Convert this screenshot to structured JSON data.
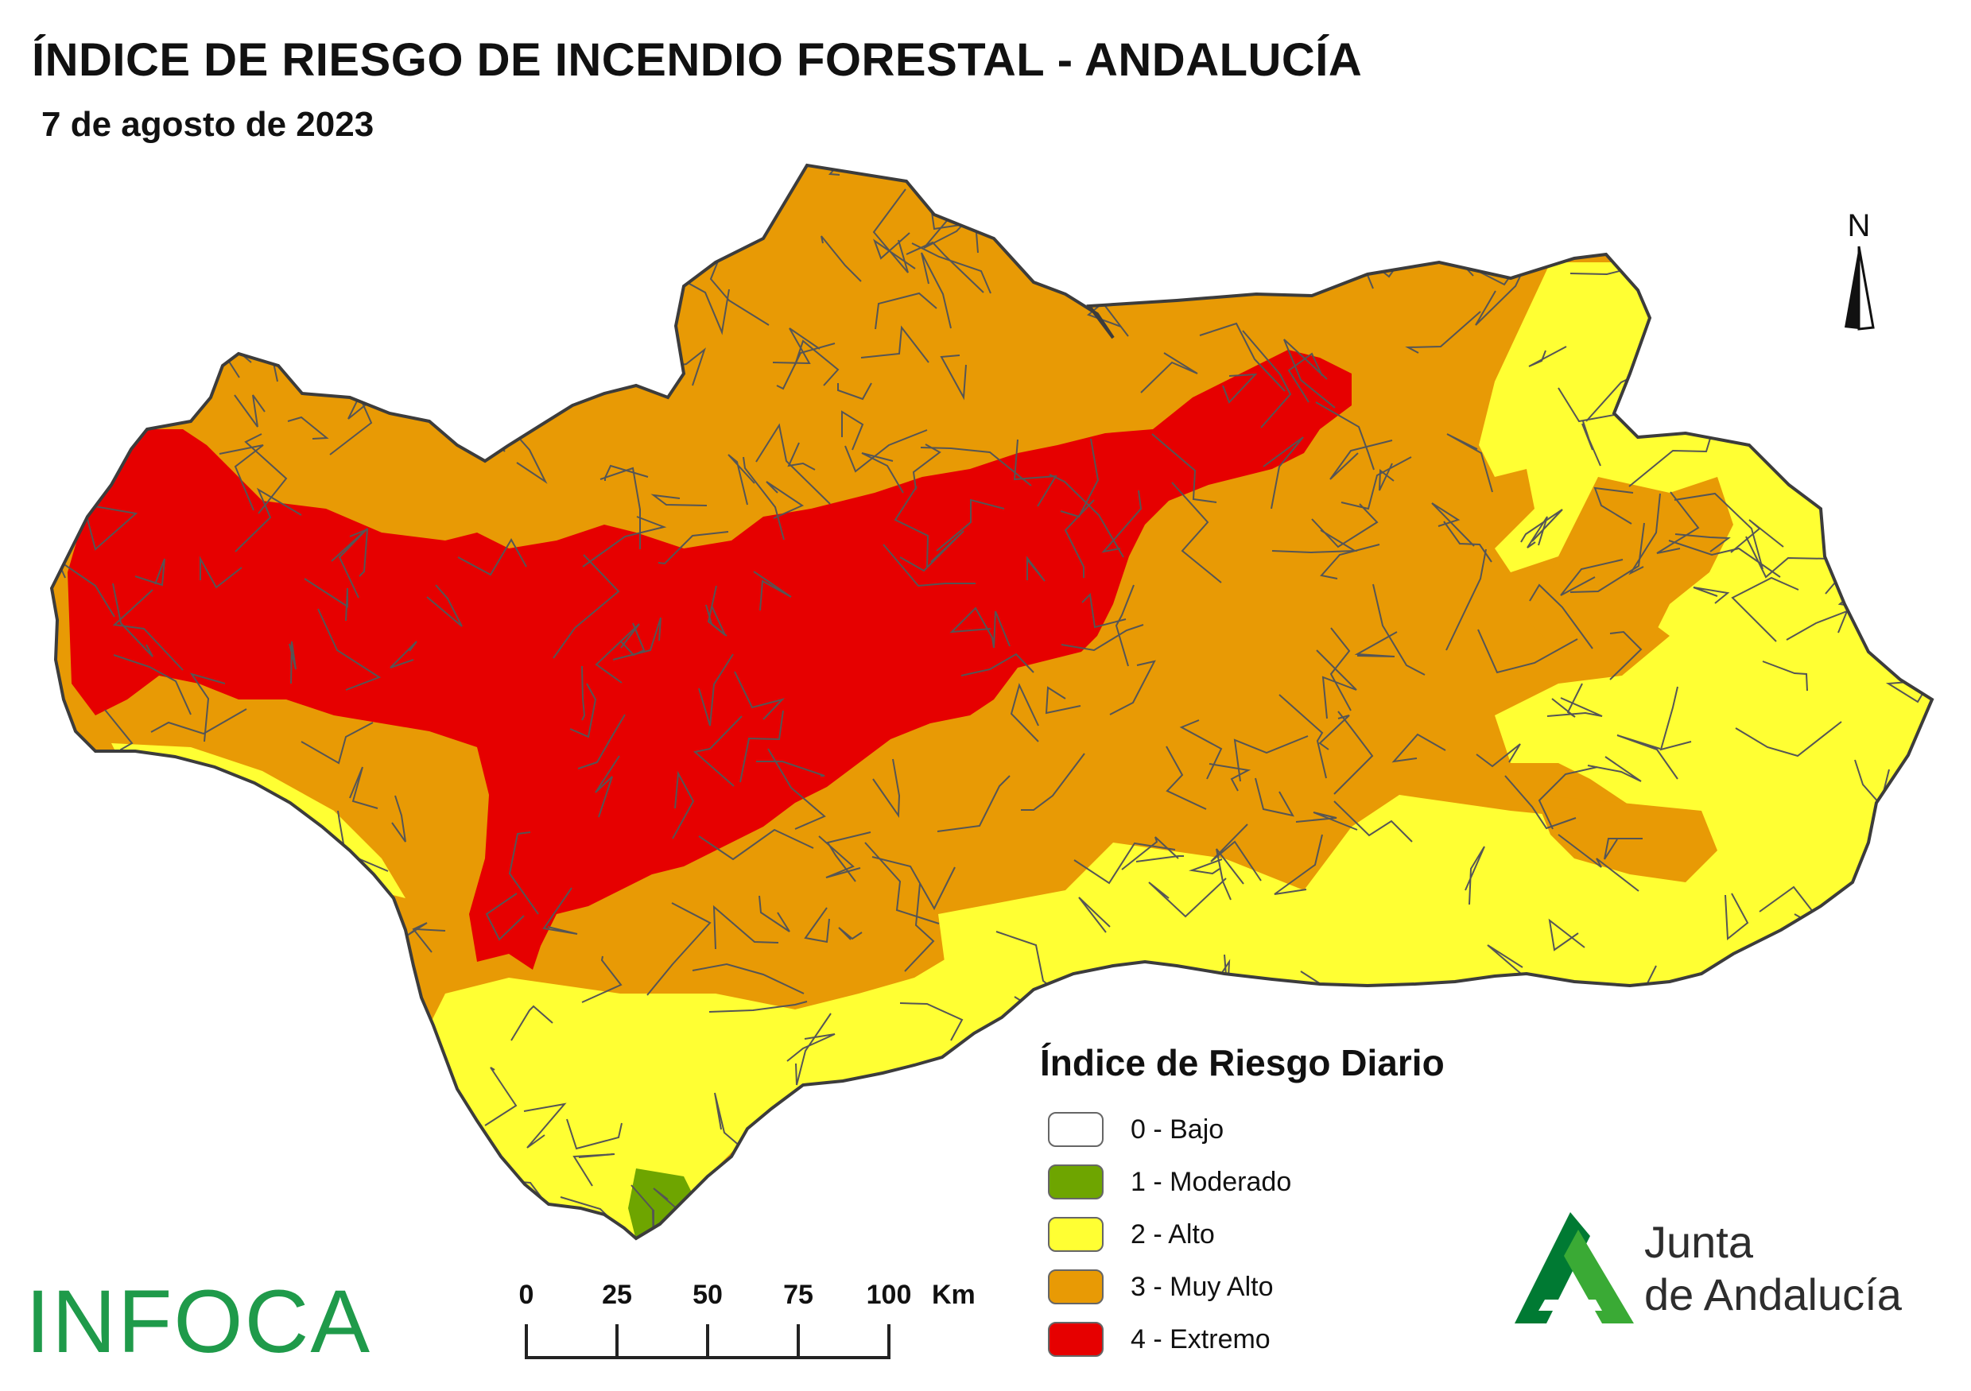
{
  "header": {
    "title": "ÍNDICE DE RIESGO DE INCENDIO FORESTAL - ANDALUCÍA",
    "date": "7 de agosto de 2023"
  },
  "north_arrow": {
    "label": "N"
  },
  "legend": {
    "title": "Índice de Riesgo Diario",
    "items": [
      {
        "label": "0 - Bajo",
        "color": "#ffffff"
      },
      {
        "label": "1 - Moderado",
        "color": "#6ea500"
      },
      {
        "label": "2 - Alto",
        "color": "#ffff33"
      },
      {
        "label": "3 - Muy Alto",
        "color": "#e89a05"
      },
      {
        "label": "4 - Extremo",
        "color": "#e60000"
      }
    ]
  },
  "scale_bar": {
    "ticks": [
      "0",
      "25",
      "50",
      "75",
      "100"
    ],
    "unit": "Km"
  },
  "logos": {
    "infoca": "INFOCA",
    "junta_line1": "Junta",
    "junta_line2": "de Andalucía"
  },
  "colors": {
    "bajo": "#ffffff",
    "moderado": "#6ea500",
    "alto": "#ffff33",
    "muy_alto": "#e89a05",
    "extremo": "#e60000",
    "boundary": "#555555",
    "infoca_green": "#1f9a4a",
    "junta_green_dark": "#007a33",
    "junta_green_light": "#3aaa35"
  }
}
